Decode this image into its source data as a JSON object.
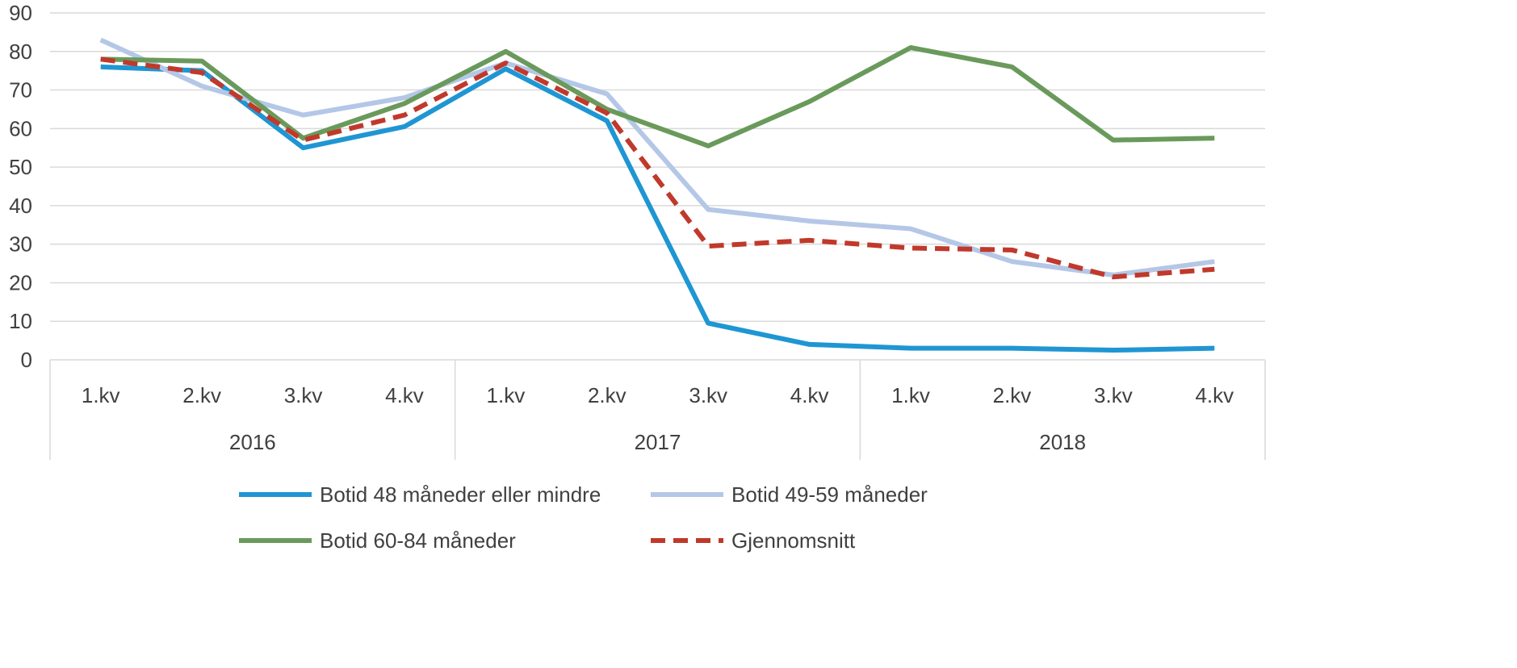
{
  "chart_data": {
    "type": "line",
    "title": "",
    "xlabel": "",
    "ylabel": "",
    "ylim": [
      0,
      90
    ],
    "yticks": [
      "0",
      "10",
      "20",
      "30",
      "40",
      "50",
      "60",
      "70",
      "80",
      "90"
    ],
    "grid": true,
    "legend_position": "bottom",
    "categories": [
      "1.kv",
      "2.kv",
      "3.kv",
      "4.kv",
      "1.kv",
      "2.kv",
      "3.kv",
      "4.kv",
      "1.kv",
      "2.kv",
      "3.kv",
      "4.kv"
    ],
    "groups": [
      "2016",
      "2017",
      "2018"
    ],
    "series": [
      {
        "name": "Botid 48 måneder eller mindre",
        "color": "#1f96d3",
        "dashed": false,
        "values": [
          76,
          75,
          55,
          60.5,
          75.5,
          62,
          9.5,
          4,
          3,
          3,
          2.5,
          3
        ]
      },
      {
        "name": "Botid 49-59 måneder",
        "color": "#b4c7e7",
        "dashed": false,
        "values": [
          83,
          71,
          63.5,
          68,
          77,
          69,
          39,
          36,
          34,
          25.5,
          22,
          25.5
        ]
      },
      {
        "name": "Botid 60-84 måneder",
        "color": "#6a9a5b",
        "dashed": false,
        "values": [
          78,
          77.5,
          57.5,
          66.5,
          80,
          65,
          55.5,
          67,
          81,
          76,
          57,
          57.5
        ]
      },
      {
        "name": "Gjennomsnitt",
        "color": "#c0392b",
        "dashed": true,
        "values": [
          78,
          74.5,
          57,
          63.5,
          77,
          64,
          29.5,
          31,
          29,
          28.5,
          21.5,
          23.5
        ]
      }
    ]
  }
}
